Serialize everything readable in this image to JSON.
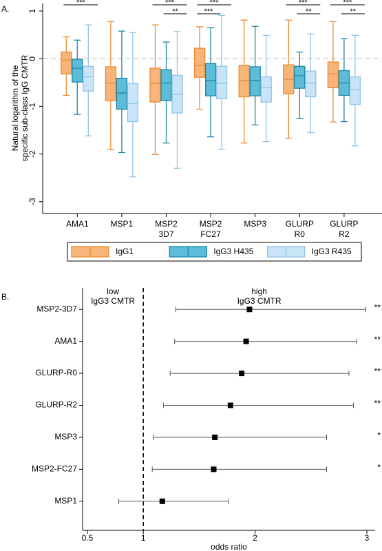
{
  "chart_data": [
    {
      "type": "box",
      "panel_label": "A.",
      "y_label": [
        "Natural logarithm of the",
        "specific sub-class IgG CMTR"
      ],
      "categories": [
        [
          "AMA1"
        ],
        [
          "MSP1"
        ],
        [
          "MSP2",
          "3D7"
        ],
        [
          "MSP2",
          "FC27"
        ],
        [
          "MSP3"
        ],
        [
          "GLURP",
          "R0"
        ],
        [
          "GLURP",
          "R2"
        ]
      ],
      "series": [
        {
          "name": "IgG1",
          "color": "#f8b57a",
          "stroke": "#ec8a2f",
          "values": [
            {
              "low": -0.77,
              "q1": -0.32,
              "median": -0.03,
              "q3": 0.14,
              "high": 0.46
            },
            {
              "low": -1.91,
              "q1": -0.88,
              "median": -0.51,
              "q3": -0.17,
              "high": 0.78
            },
            {
              "low": -2.01,
              "q1": -0.91,
              "median": -0.52,
              "q3": -0.2,
              "high": 0.71
            },
            {
              "low": -1.06,
              "q1": -0.39,
              "median": -0.14,
              "q3": 0.22,
              "high": 0.67
            },
            {
              "low": -1.77,
              "q1": -0.8,
              "median": -0.46,
              "q3": -0.14,
              "high": 0.81
            },
            {
              "low": -1.67,
              "q1": -0.74,
              "median": -0.43,
              "q3": -0.13,
              "high": 0.81
            },
            {
              "low": -1.33,
              "q1": -0.61,
              "median": -0.32,
              "q3": -0.07,
              "high": 0.78
            }
          ]
        },
        {
          "name": "IgG3 H435",
          "color": "#5dbdd8",
          "stroke": "#1c86a9",
          "values": [
            {
              "low": -1.17,
              "q1": -0.49,
              "median": -0.2,
              "q3": -0.01,
              "high": 0.39
            },
            {
              "low": -1.97,
              "q1": -1.06,
              "median": -0.72,
              "q3": -0.41,
              "high": 0.58
            },
            {
              "low": -1.77,
              "q1": -0.88,
              "median": -0.51,
              "q3": -0.23,
              "high": 0.35
            },
            {
              "low": -1.64,
              "q1": -0.78,
              "median": -0.46,
              "q3": -0.1,
              "high": 0.65
            },
            {
              "low": -1.39,
              "q1": -0.78,
              "median": -0.46,
              "q3": -0.17,
              "high": 0.68
            },
            {
              "low": -1.26,
              "q1": -0.62,
              "median": -0.36,
              "q3": -0.16,
              "high": 0.14
            },
            {
              "low": -1.32,
              "q1": -0.77,
              "median": -0.51,
              "q3": -0.25,
              "high": 0.42
            }
          ]
        },
        {
          "name": "IgG3 R435",
          "color": "#c8e4f6",
          "stroke": "#8cc4e8",
          "values": [
            {
              "low": -1.62,
              "q1": -0.68,
              "median": -0.38,
              "q3": -0.16,
              "high": 0.71
            },
            {
              "low": -2.48,
              "q1": -1.32,
              "median": -0.94,
              "q3": -0.52,
              "high": 0.55
            },
            {
              "low": -2.3,
              "q1": -1.14,
              "median": -0.75,
              "q3": -0.35,
              "high": 0.57
            },
            {
              "low": -1.9,
              "q1": -0.84,
              "median": -0.52,
              "q3": -0.16,
              "high": 0.91
            },
            {
              "low": -1.74,
              "q1": -0.91,
              "median": -0.61,
              "q3": -0.38,
              "high": 0.49
            },
            {
              "low": -1.55,
              "q1": -0.8,
              "median": -0.51,
              "q3": -0.26,
              "high": 0.52
            },
            {
              "low": -1.83,
              "q1": -0.96,
              "median": -0.65,
              "q3": -0.38,
              "high": 0.49
            }
          ]
        }
      ],
      "ylim": [
        -3.25,
        1.16
      ],
      "yticks": [
        1,
        0,
        -1,
        -2,
        -3
      ],
      "reference_line": 0,
      "legend": "bottom",
      "significance": [
        {
          "category": 0,
          "series": [
            0,
            2
          ],
          "label": "***"
        },
        {
          "category": 2,
          "series": [
            0,
            2
          ],
          "label": "***"
        },
        {
          "category": 2,
          "series": [
            1,
            2
          ],
          "label": "**"
        },
        {
          "category": 3,
          "series": [
            0,
            2
          ],
          "label": "***"
        },
        {
          "category": 3,
          "series": [
            0,
            1
          ],
          "label": "***"
        },
        {
          "category": 5,
          "series": [
            0,
            2
          ],
          "label": "***"
        },
        {
          "category": 5,
          "series": [
            1,
            2
          ],
          "label": "**"
        },
        {
          "category": 6,
          "series": [
            0,
            2
          ],
          "label": "***"
        },
        {
          "category": 6,
          "series": [
            1,
            2
          ],
          "label": "**"
        }
      ]
    },
    {
      "type": "forest",
      "panel_label": "B.",
      "categories": [
        "MSP2-3D7",
        "AMA1",
        "GLURP-R0",
        "GLURP-R2",
        "MSP3",
        "MSP2-FC27",
        "MSP1"
      ],
      "values": [
        1.95,
        1.92,
        1.88,
        1.78,
        1.64,
        1.63,
        1.17
      ],
      "ci_low": [
        1.29,
        1.28,
        1.24,
        1.18,
        1.09,
        1.08,
        0.78
      ],
      "ci_high": [
        2.99,
        2.91,
        2.84,
        2.88,
        2.64,
        2.64,
        1.76
      ],
      "significance": [
        "**",
        "**",
        "**",
        "**",
        "*",
        "*",
        ""
      ],
      "color": "#000000",
      "xlim": [
        0.457,
        3.074
      ],
      "xticks": [
        0.5,
        1,
        2,
        3
      ],
      "x_label": "odds ratio",
      "reference_line": 1,
      "annotations": [
        {
          "side": "left",
          "lines": [
            "low",
            "IgG3 CMTR"
          ]
        },
        {
          "side": "right",
          "lines": [
            "high",
            "IgG3 CMTR"
          ]
        }
      ]
    }
  ]
}
